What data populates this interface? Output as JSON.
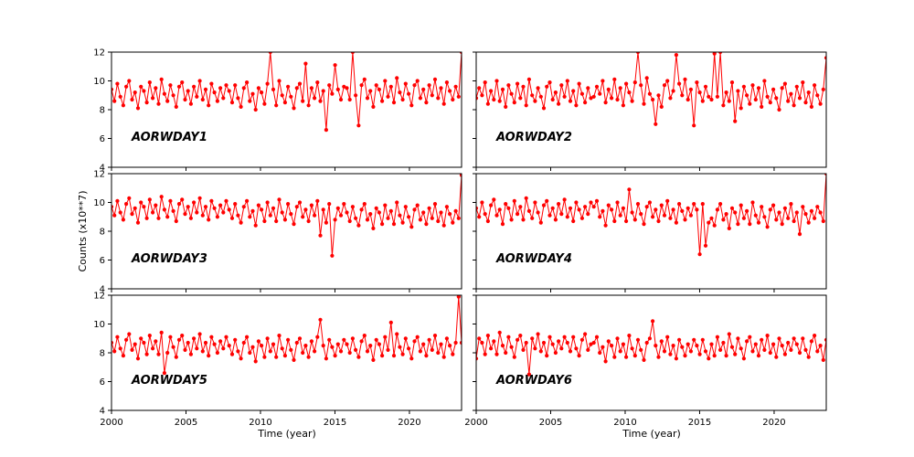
{
  "figure": {
    "ylabel": "Counts (x10**7)",
    "xlabel": "Time (year)",
    "background": "#ffffff",
    "line_color": "#ff0000",
    "x_ticks": [
      2000,
      2005,
      2010,
      2015,
      2020
    ],
    "y_ticks": [
      4,
      6,
      8,
      10,
      12
    ],
    "x_range": [
      2000,
      2023.5
    ],
    "y_range": [
      4,
      12
    ]
  },
  "chart_data": [
    {
      "type": "line",
      "name": "AORWDAY1",
      "x_range": [
        2000,
        2023.5
      ],
      "ylim": [
        4,
        12
      ],
      "values": [
        9.4,
        8.6,
        9.8,
        8.9,
        8.3,
        9.6,
        10.0,
        8.7,
        9.2,
        8.1,
        9.6,
        9.3,
        8.5,
        9.9,
        8.8,
        9.5,
        8.4,
        10.1,
        9.1,
        8.6,
        9.7,
        9.0,
        8.2,
        9.6,
        9.9,
        8.7,
        9.3,
        8.4,
        9.6,
        8.9,
        10.0,
        8.7,
        9.4,
        8.3,
        9.8,
        9.2,
        8.6,
        9.5,
        8.8,
        9.7,
        9.3,
        8.5,
        9.7,
        8.8,
        8.2,
        9.5,
        9.9,
        8.6,
        9.1,
        8.0,
        9.5,
        9.2,
        8.4,
        9.8,
        12.0,
        9.4,
        8.3,
        10.0,
        9.0,
        8.5,
        9.6,
        8.9,
        8.1,
        9.5,
        9.8,
        8.6,
        11.2,
        8.3,
        9.5,
        8.8,
        9.9,
        8.6,
        9.3,
        6.6,
        9.7,
        9.1,
        11.1,
        9.4,
        8.7,
        9.6,
        9.5,
        8.7,
        12.0,
        9.0,
        6.9,
        9.7,
        10.1,
        8.8,
        9.3,
        8.2,
        9.7,
        9.4,
        8.6,
        10.0,
        8.9,
        9.6,
        8.5,
        10.2,
        9.2,
        8.7,
        9.8,
        9.1,
        8.3,
        9.7,
        10.0,
        8.8,
        9.4,
        8.5,
        9.7,
        9.0,
        10.1,
        8.8,
        9.5,
        8.4,
        9.9,
        9.3,
        8.7,
        9.6,
        8.9,
        12.0
      ]
    },
    {
      "type": "line",
      "name": "AORWDAY2",
      "x_range": [
        2000,
        2023.5
      ],
      "ylim": [
        4,
        12
      ],
      "values": [
        8.8,
        9.5,
        9.0,
        9.9,
        8.4,
        9.3,
        8.7,
        10.0,
        8.6,
        9.4,
        8.2,
        9.7,
        9.1,
        8.5,
        9.8,
        8.8,
        9.6,
        8.3,
        10.1,
        9.0,
        8.6,
        9.5,
        8.9,
        8.1,
        9.6,
        9.9,
        8.7,
        9.2,
        8.4,
        9.7,
        8.9,
        10.0,
        8.6,
        9.3,
        8.3,
        9.8,
        9.1,
        8.5,
        9.5,
        8.8,
        8.9,
        9.6,
        9.1,
        10.0,
        8.5,
        9.4,
        8.8,
        10.1,
        8.7,
        9.5,
        8.3,
        9.8,
        9.2,
        8.6,
        9.9,
        12.0,
        9.7,
        8.4,
        10.2,
        9.1,
        8.7,
        7.0,
        9.0,
        8.2,
        9.7,
        10.0,
        8.8,
        9.3,
        11.8,
        9.8,
        9.0,
        10.1,
        8.7,
        9.4,
        6.9,
        9.9,
        9.2,
        8.6,
        9.6,
        8.9,
        8.7,
        11.9,
        8.9,
        12.0,
        8.3,
        9.2,
        8.6,
        9.9,
        7.2,
        9.3,
        8.1,
        9.6,
        9.0,
        8.4,
        9.7,
        8.7,
        9.5,
        8.2,
        10.0,
        8.9,
        8.5,
        9.4,
        8.8,
        8.0,
        9.5,
        9.8,
        8.6,
        9.1,
        8.3,
        9.6,
        8.8,
        9.9,
        8.5,
        9.2,
        8.2,
        9.7,
        9.0,
        8.4,
        9.4,
        11.6
      ]
    },
    {
      "type": "line",
      "name": "AORWDAY3",
      "x_range": [
        2000,
        2023.5
      ],
      "ylim": [
        4,
        12
      ],
      "values": [
        9.7,
        9.1,
        10.1,
        9.3,
        8.8,
        9.9,
        10.3,
        9.2,
        9.6,
        8.6,
        10.0,
        9.7,
        8.9,
        10.2,
        9.3,
        9.8,
        8.9,
        10.4,
        9.5,
        9.0,
        10.1,
        9.4,
        8.7,
        9.9,
        10.2,
        9.2,
        9.7,
        8.9,
        10.0,
        9.3,
        10.3,
        9.1,
        9.7,
        8.8,
        10.1,
        9.6,
        9.0,
        9.8,
        9.3,
        10.1,
        9.5,
        8.9,
        9.9,
        9.1,
        8.6,
        9.7,
        10.1,
        9.0,
        9.4,
        8.4,
        9.8,
        9.5,
        8.7,
        10.0,
        9.1,
        9.6,
        8.7,
        10.2,
        9.3,
        8.8,
        9.9,
        9.2,
        8.5,
        9.7,
        10.0,
        9.0,
        9.5,
        8.7,
        9.8,
        9.1,
        10.1,
        7.7,
        9.5,
        8.6,
        9.9,
        6.3,
        8.8,
        9.6,
        9.1,
        9.9,
        9.3,
        8.7,
        9.7,
        8.9,
        8.4,
        9.5,
        9.9,
        8.8,
        9.2,
        8.2,
        9.6,
        9.3,
        8.5,
        9.8,
        8.9,
        9.4,
        8.5,
        10.0,
        9.1,
        8.6,
        9.7,
        9.0,
        8.3,
        9.5,
        9.8,
        8.8,
        9.3,
        8.5,
        9.6,
        8.9,
        9.9,
        8.7,
        9.3,
        8.4,
        9.7,
        9.2,
        8.6,
        9.4,
        8.9,
        11.9
      ]
    },
    {
      "type": "line",
      "name": "AORWDAY4",
      "x_range": [
        2000,
        2023.5
      ],
      "ylim": [
        4,
        12
      ],
      "values": [
        9.6,
        9.0,
        10.0,
        9.2,
        8.7,
        9.8,
        10.2,
        9.1,
        9.5,
        8.5,
        9.9,
        9.6,
        8.8,
        10.1,
        9.2,
        9.7,
        8.8,
        10.3,
        9.4,
        8.9,
        10.0,
        9.3,
        8.6,
        9.8,
        10.1,
        9.1,
        9.6,
        8.8,
        9.9,
        9.2,
        10.2,
        9.0,
        9.6,
        8.7,
        10.0,
        9.5,
        8.9,
        9.7,
        9.2,
        10.0,
        9.7,
        10.1,
        9.0,
        9.4,
        8.4,
        9.8,
        9.5,
        8.7,
        10.0,
        9.1,
        9.6,
        8.7,
        10.9,
        9.3,
        8.8,
        9.9,
        9.2,
        8.5,
        9.7,
        10.0,
        9.0,
        9.5,
        8.7,
        9.8,
        9.1,
        10.1,
        8.9,
        9.5,
        8.6,
        9.9,
        9.4,
        8.8,
        9.6,
        9.1,
        9.9,
        9.5,
        6.4,
        9.9,
        7.0,
        8.6,
        8.9,
        8.4,
        9.5,
        9.9,
        8.8,
        9.2,
        8.2,
        9.6,
        9.3,
        8.5,
        9.8,
        8.9,
        9.4,
        8.5,
        10.0,
        9.1,
        8.6,
        9.7,
        9.0,
        8.3,
        9.5,
        9.8,
        8.8,
        9.3,
        8.5,
        9.6,
        8.9,
        9.9,
        8.7,
        9.3,
        7.8,
        9.7,
        9.2,
        8.6,
        9.4,
        8.9,
        9.7,
        9.3,
        8.7,
        12.0
      ]
    },
    {
      "type": "line",
      "name": "AORWDAY5",
      "x_range": [
        2000,
        2023.5
      ],
      "ylim": [
        4,
        12
      ],
      "values": [
        8.7,
        8.1,
        9.1,
        8.3,
        7.8,
        8.9,
        9.3,
        8.2,
        8.6,
        7.6,
        9.0,
        8.7,
        7.9,
        9.2,
        8.3,
        8.8,
        7.9,
        9.4,
        6.6,
        8.0,
        9.1,
        8.4,
        7.7,
        8.9,
        9.2,
        8.2,
        8.7,
        7.9,
        9.0,
        8.3,
        9.3,
        8.1,
        8.7,
        7.8,
        9.1,
        8.6,
        8.0,
        8.8,
        8.3,
        9.1,
        8.5,
        7.9,
        8.9,
        8.1,
        7.6,
        8.7,
        9.1,
        8.0,
        8.4,
        7.4,
        8.8,
        8.5,
        7.7,
        9.0,
        8.1,
        8.6,
        7.7,
        9.2,
        8.3,
        7.8,
        8.9,
        8.2,
        7.5,
        8.7,
        9.0,
        8.0,
        8.5,
        7.7,
        8.8,
        8.1,
        9.1,
        10.3,
        8.5,
        7.6,
        8.9,
        8.4,
        7.8,
        8.6,
        8.1,
        8.9,
        8.6,
        8.0,
        9.0,
        8.2,
        7.7,
        8.8,
        9.2,
        8.1,
        8.5,
        7.5,
        8.9,
        8.6,
        7.8,
        9.1,
        8.2,
        10.1,
        7.8,
        9.3,
        8.4,
        7.9,
        9.0,
        8.3,
        7.6,
        8.8,
        9.1,
        8.1,
        8.6,
        7.8,
        8.9,
        8.2,
        9.2,
        8.0,
        8.6,
        7.7,
        9.0,
        8.5,
        7.9,
        8.7,
        11.9,
        8.7
      ]
    },
    {
      "type": "line",
      "name": "AORWDAY6",
      "x_range": [
        2000,
        2023.5
      ],
      "ylim": [
        4,
        12
      ],
      "values": [
        7.6,
        9.0,
        8.7,
        7.9,
        9.2,
        8.3,
        8.8,
        7.9,
        9.4,
        8.5,
        8.0,
        9.1,
        8.4,
        7.7,
        8.9,
        9.2,
        8.2,
        8.7,
        6.5,
        9.0,
        8.3,
        9.3,
        8.1,
        8.7,
        7.8,
        9.1,
        8.6,
        8.0,
        8.8,
        8.3,
        9.1,
        8.7,
        8.1,
        9.1,
        8.3,
        7.8,
        8.9,
        9.3,
        8.2,
        8.6,
        8.7,
        9.1,
        8.0,
        8.4,
        7.4,
        8.8,
        8.5,
        7.7,
        9.0,
        8.1,
        8.6,
        7.7,
        9.2,
        8.3,
        7.8,
        8.9,
        8.2,
        7.5,
        8.7,
        9.0,
        10.2,
        8.5,
        7.7,
        8.8,
        8.1,
        9.1,
        7.9,
        8.5,
        7.6,
        8.9,
        8.4,
        7.8,
        8.6,
        8.1,
        8.9,
        8.5,
        7.9,
        8.9,
        8.1,
        7.6,
        8.6,
        7.8,
        9.1,
        8.2,
        8.7,
        7.8,
        9.3,
        8.4,
        7.9,
        9.0,
        8.3,
        7.6,
        8.8,
        9.1,
        8.1,
        8.6,
        7.8,
        8.9,
        8.2,
        9.2,
        8.0,
        8.6,
        7.7,
        9.0,
        8.5,
        7.9,
        8.7,
        8.2,
        9.0,
        8.6,
        8.0,
        9.0,
        8.2,
        7.7,
        8.8,
        9.2,
        8.1,
        8.5,
        7.5,
        8.9
      ]
    }
  ]
}
